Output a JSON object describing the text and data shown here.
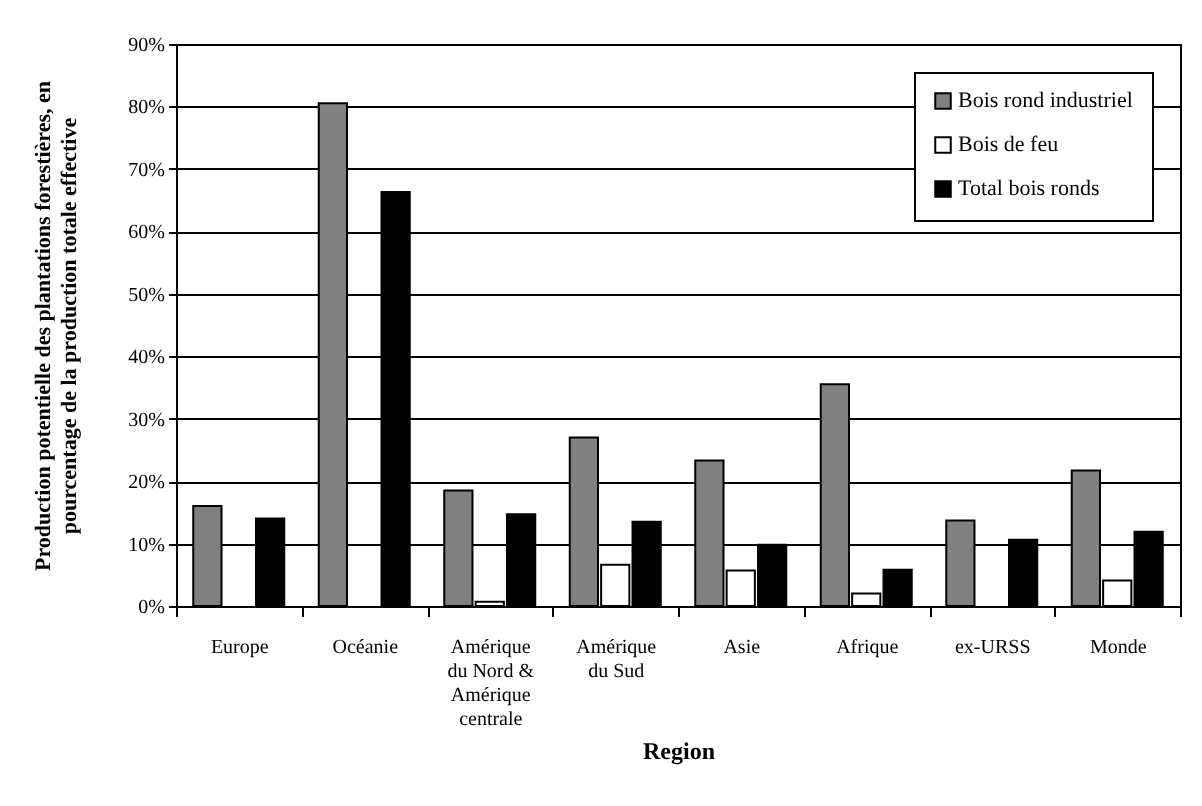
{
  "chart_data": {
    "type": "bar",
    "xlabel": "Region",
    "ylabel": "Production potentielle des plantations forestières, en\npourcentage de la production totale effective",
    "categories": [
      "Europe",
      "Océanie",
      "Amérique\ndu Nord &\nAmérique\ncentrale",
      "Amérique\ndu Sud",
      "Asie",
      "Afrique",
      "ex-URSS",
      "Monde"
    ],
    "series": [
      {
        "name": "Bois rond industriel",
        "color": "#808080",
        "values": [
          16,
          80.5,
          18.5,
          27,
          23.3,
          35.5,
          13.7,
          21.7
        ]
      },
      {
        "name": "Bois de feu",
        "color": "#ffffff",
        "values": [
          null,
          null,
          0.7,
          6.6,
          5.7,
          2,
          null,
          4.1
        ]
      },
      {
        "name": "Total bois ronds",
        "color": "#000000",
        "values": [
          14,
          66.3,
          14.7,
          13.5,
          9.8,
          5.8,
          10.6,
          11.9
        ]
      }
    ],
    "ylim": [
      0,
      90
    ],
    "yticks": [
      {
        "value": 0,
        "label": "0%"
      },
      {
        "value": 10,
        "label": "10%"
      },
      {
        "value": 20,
        "label": "20%"
      },
      {
        "value": 30,
        "label": "30%"
      },
      {
        "value": 40,
        "label": "40%"
      },
      {
        "value": 50,
        "label": "50%"
      },
      {
        "value": 60,
        "label": "60%"
      },
      {
        "value": 70,
        "label": "70%"
      },
      {
        "value": 80,
        "label": "80%"
      },
      {
        "value": 90,
        "label": "90%"
      }
    ],
    "grid": "y",
    "legend": "top right"
  }
}
